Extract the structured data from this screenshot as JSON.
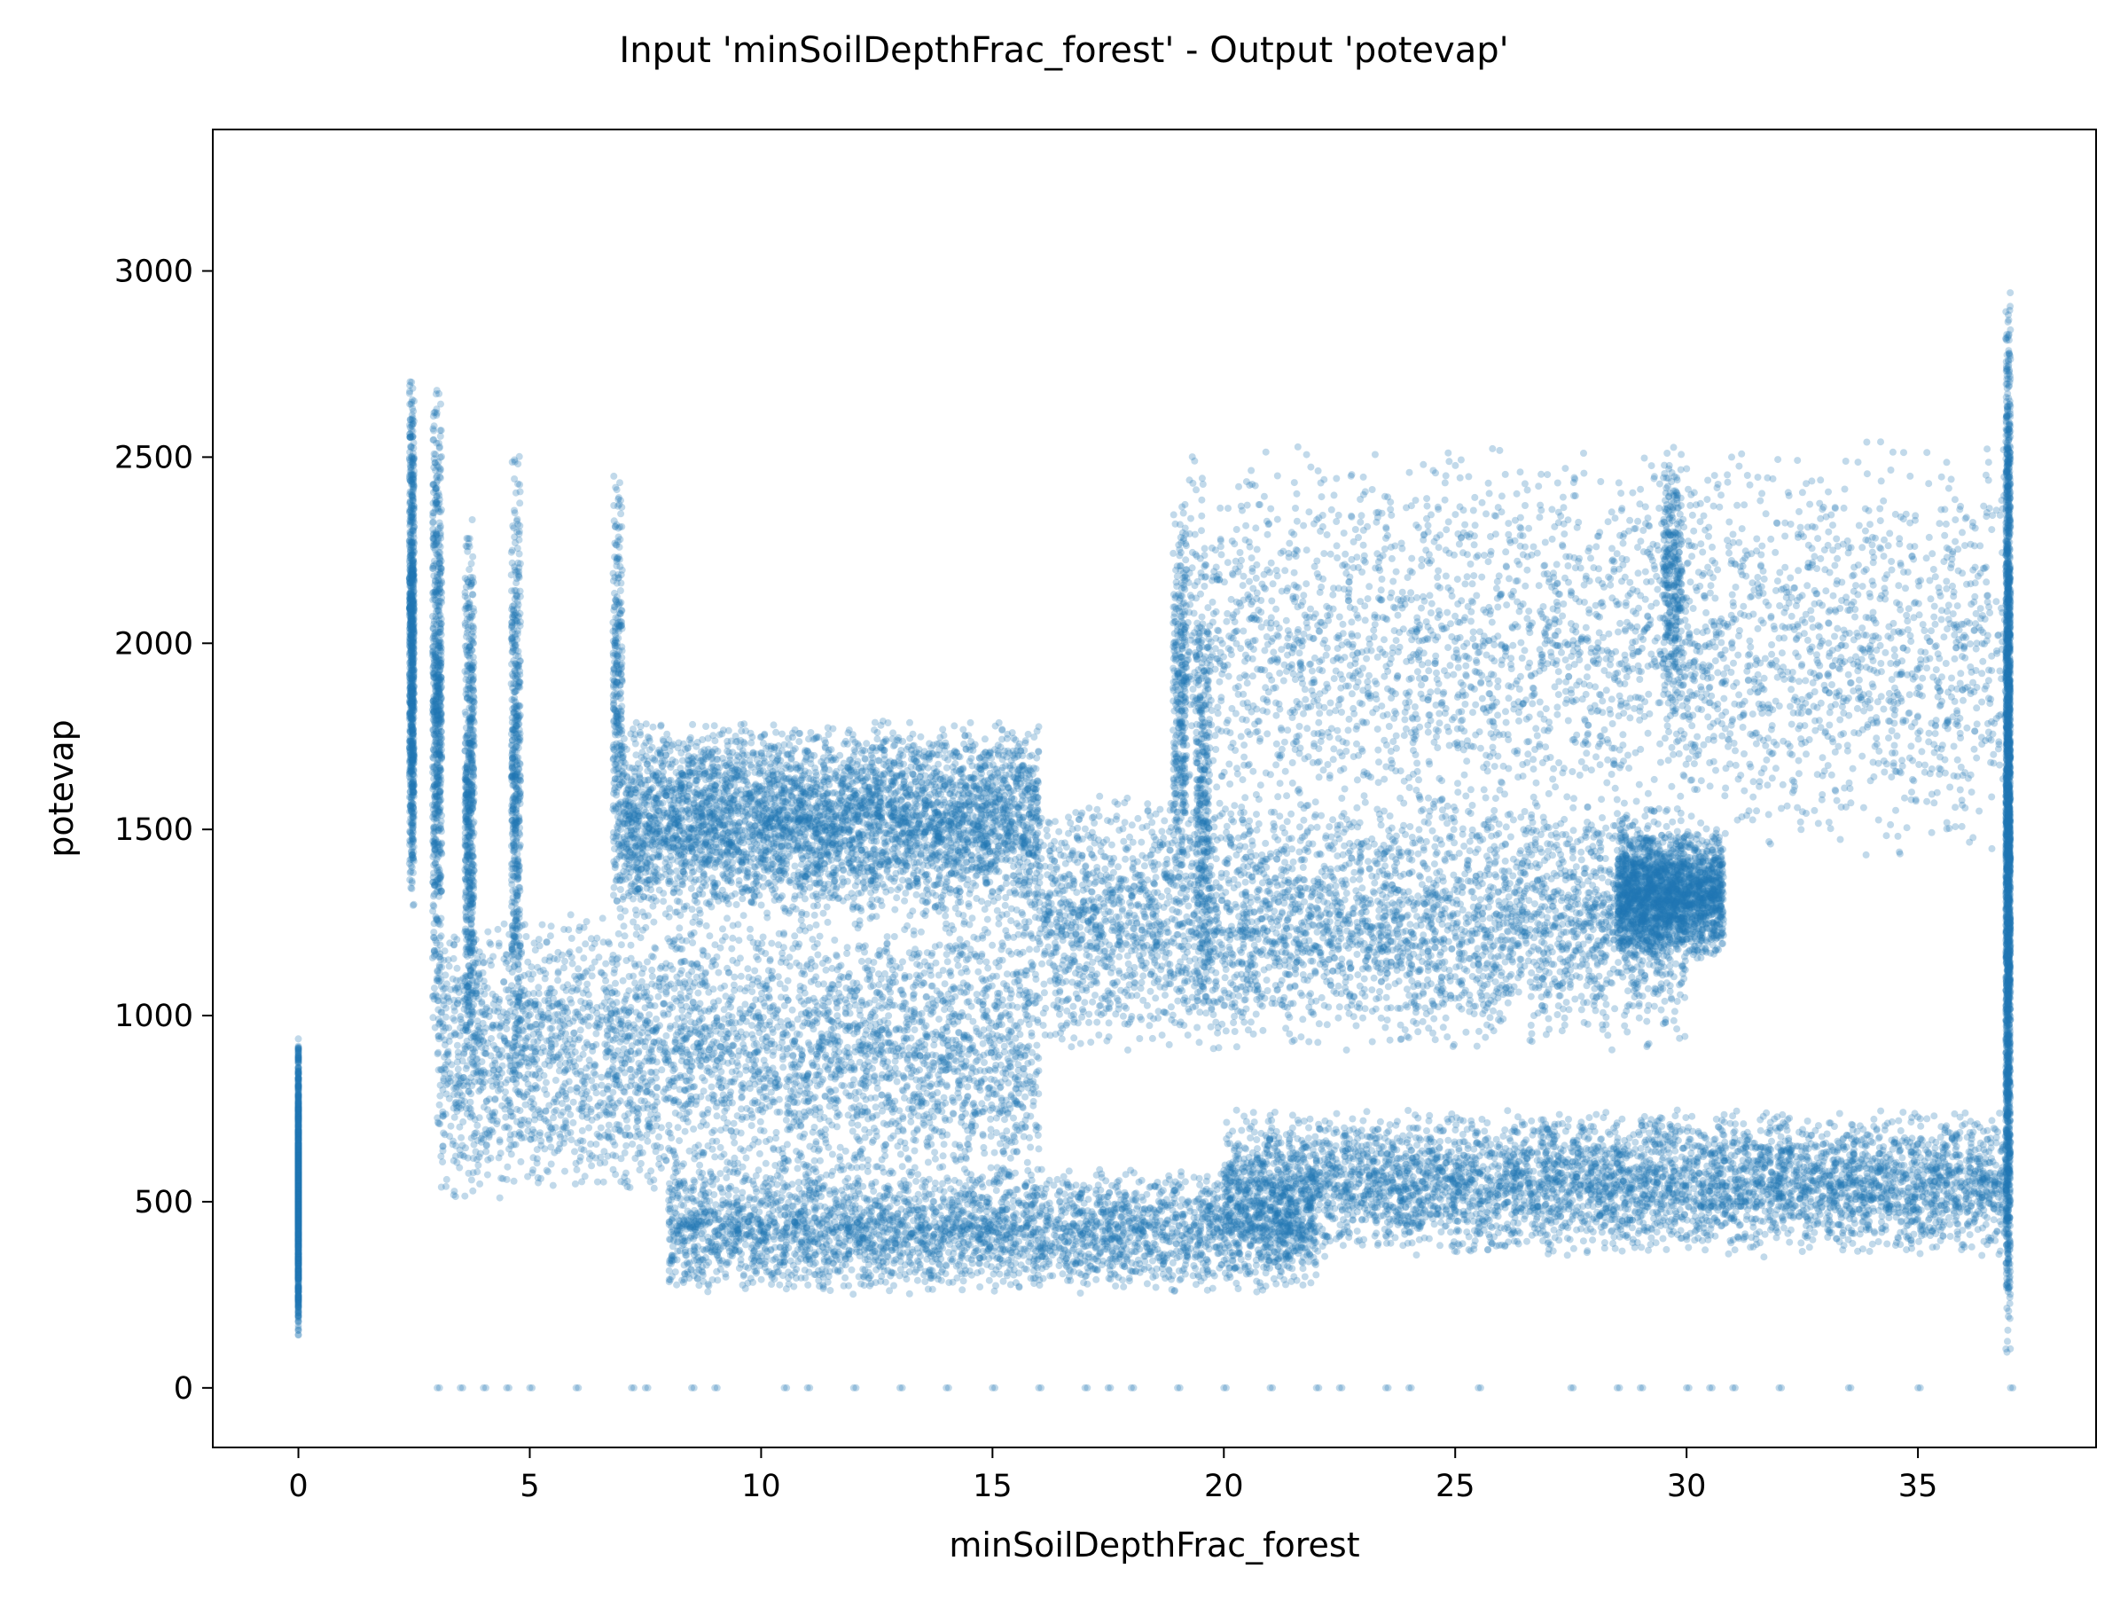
{
  "chart_data": {
    "type": "scatter",
    "title": "Input 'minSoilDepthFrac_forest' - Output 'potevap'",
    "xlabel": "minSoilDepthFrac_forest",
    "ylabel": "potevap",
    "xlim": [
      -1.85,
      38.85
    ],
    "ylim": [
      -160,
      3380
    ],
    "xticks": [
      0,
      5,
      10,
      15,
      20,
      25,
      30,
      35
    ],
    "yticks": [
      0,
      500,
      1000,
      1500,
      2000,
      2500,
      3000
    ],
    "grid": false,
    "legend": "none",
    "marker_color": "#1f77b4",
    "marker_alpha": 0.28,
    "series": [
      {
        "clusters": [
          {
            "x": [
              0,
              0
            ],
            "y": [
              120,
              950
            ],
            "n": 1200
          },
          {
            "x": [
              2.4,
              2.5
            ],
            "y": [
              1270,
              2720
            ],
            "n": 900
          },
          {
            "x": [
              2.9,
              3.1
            ],
            "y": [
              900,
              2740
            ],
            "n": 700
          },
          {
            "x": [
              3.6,
              3.8
            ],
            "y": [
              800,
              2350
            ],
            "n": 600
          },
          {
            "x": [
              4.6,
              4.8
            ],
            "y": [
              750,
              2570
            ],
            "n": 500
          },
          {
            "x": [
              6.8,
              7.0
            ],
            "y": [
              1200,
              2480
            ],
            "n": 300
          },
          {
            "x": [
              7,
              16
            ],
            "y": [
              1250,
              1800
            ],
            "n": 4500
          },
          {
            "x": [
              3,
              16
            ],
            "y": [
              500,
              1300
            ],
            "n": 4000
          },
          {
            "x": [
              8,
              22
            ],
            "y": [
              250,
              600
            ],
            "n": 3500
          },
          {
            "x": [
              16,
              30
            ],
            "y": [
              900,
              1600
            ],
            "n": 4000
          },
          {
            "x": [
              28.5,
              30.8
            ],
            "y": [
              1150,
              1500
            ],
            "n": 2000
          },
          {
            "x": [
              20,
              37
            ],
            "y": [
              350,
              750
            ],
            "n": 5000
          },
          {
            "x": [
              19,
              37
            ],
            "y": [
              1400,
              2550
            ],
            "n": 3500
          },
          {
            "x": [
              18.9,
              19.2
            ],
            "y": [
              1300,
              2360
            ],
            "n": 300
          },
          {
            "x": [
              19.4,
              19.7
            ],
            "y": [
              900,
              2150
            ],
            "n": 300
          },
          {
            "x": [
              29.5,
              29.9
            ],
            "y": [
              1800,
              2550
            ],
            "n": 300
          },
          {
            "x": [
              36.9,
              37.0
            ],
            "y": [
              80,
              2950
            ],
            "n": 2500
          }
        ],
        "zero_row_x": [
          3,
          3.5,
          4,
          4.5,
          5,
          6,
          7.2,
          7.5,
          8.5,
          9,
          10.5,
          11,
          12,
          13,
          14,
          15,
          16,
          17,
          17.5,
          18,
          19,
          20,
          21,
          22,
          22.5,
          23.5,
          24,
          25.5,
          27.5,
          28.5,
          29,
          30,
          30.5,
          31,
          32,
          33.5,
          35,
          37
        ]
      }
    ]
  }
}
